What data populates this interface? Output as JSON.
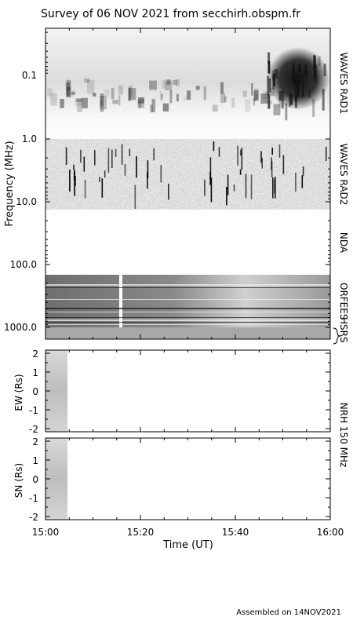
{
  "title": "Survey of 06 NOV 2021 from secchirh.obspm.fr",
  "footer": "Assembled on 14NOV2021",
  "chart_data": {
    "type": "heatmap",
    "x_axis": {
      "label": "Time (UT)",
      "range": [
        "15:00",
        "16:00"
      ],
      "ticks": [
        "15:00",
        "15:20",
        "15:40",
        "16:00"
      ]
    },
    "spectrum_panel": {
      "ylabel": "Frequency (MHz)",
      "scale": "log",
      "ylim": [
        0.02,
        1500
      ],
      "ticks": [
        "0.1",
        "1.0",
        "10.0",
        "100.0",
        "1000.0"
      ],
      "instruments": [
        {
          "label": "WAVES RAD1",
          "freq_range_mhz": [
            0.02,
            1.0
          ]
        },
        {
          "label": "WAVES RAD2",
          "freq_range_mhz": [
            1.1,
            13.5
          ]
        },
        {
          "label": "NDA",
          "freq_range_mhz": [
            13.5,
            140
          ]
        },
        {
          "label": "ORFEES",
          "freq_range_mhz": [
            140,
            1000
          ]
        },
        {
          "label": "HSRS",
          "freq_range_mhz": [
            1000,
            1500
          ]
        }
      ]
    },
    "nrh_panels": {
      "instrument_label": "NRH 150 MHz",
      "ylim": [
        -2,
        2
      ],
      "ticks": [
        "2",
        "1",
        "0",
        "-1",
        "-2"
      ],
      "panels": [
        {
          "ylabel": "EW (Rs)",
          "data_time_range": [
            "15:00",
            "15:04"
          ]
        },
        {
          "ylabel": "SN (Rs)",
          "data_time_range": [
            "15:00",
            "15:04"
          ]
        }
      ]
    },
    "colormap": "grayscale"
  }
}
